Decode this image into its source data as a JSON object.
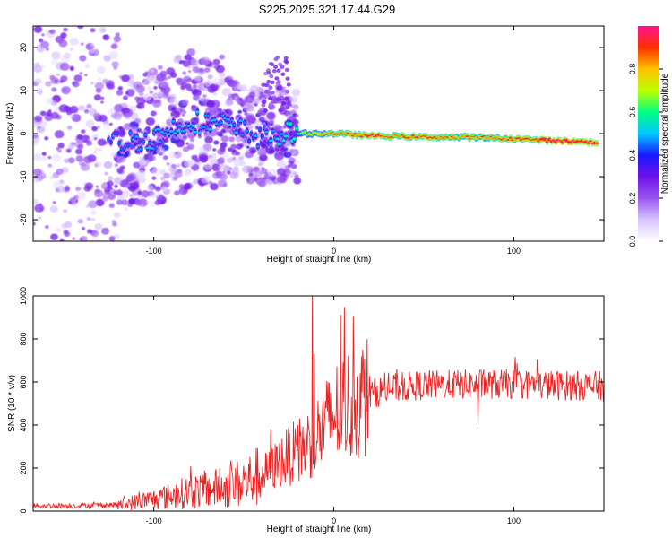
{
  "figure": {
    "title": "S225.2025.321.17.44.G29"
  },
  "chart_data": [
    {
      "type": "heatmap",
      "title": "S225.2025.321.17.44.G29",
      "xlabel": "Height of straight line (km)",
      "ylabel": "Frequency (Hz)",
      "xlim": [
        -167,
        150
      ],
      "ylim": [
        -25,
        25
      ],
      "xticks": [
        -100,
        0,
        100
      ],
      "yticks": [
        20,
        10,
        0,
        -10,
        -20
      ],
      "grid": false,
      "colorbar": {
        "label": "Normalized spectral amplitude",
        "range": [
          0,
          1
        ],
        "ticks": [
          0.0,
          0.2,
          0.4,
          0.6,
          0.8
        ],
        "colors": [
          "#ffffff",
          "#d8c4ff",
          "#9a55f0",
          "#6d12e8",
          "#1a1aff",
          "#00c8ff",
          "#00ff80",
          "#bfff00",
          "#ffc000",
          "#ff3000",
          "#ff1090"
        ]
      },
      "ridge": {
        "description": "dominant frequency track",
        "x": [
          -120,
          -100,
          -80,
          -60,
          -40,
          -25,
          -15,
          0,
          20,
          50,
          80,
          100,
          120,
          145
        ],
        "frequency": [
          -2,
          -1,
          3,
          2,
          -1,
          0,
          0,
          0,
          -0.5,
          -0.8,
          -0.9,
          -1.2,
          -1.6,
          -2.0
        ],
        "peak_amplitude": [
          0.35,
          0.38,
          0.42,
          0.38,
          0.35,
          0.45,
          0.62,
          0.78,
          0.85,
          0.8,
          0.75,
          0.82,
          0.92,
          0.88
        ]
      },
      "scatter_region": {
        "description": "incoherent noise blobs",
        "x": [
          -167,
          -20
        ],
        "frequency": [
          -25,
          25
        ]
      }
    },
    {
      "type": "line",
      "title": "",
      "xlabel": "Height of straight line (km)",
      "ylabel": "SNR (10 * v/v)",
      "xlim": [
        -167,
        150
      ],
      "ylim": [
        0,
        1000
      ],
      "xticks": [
        -100,
        0,
        100
      ],
      "yticks": [
        0,
        200,
        400,
        600,
        800,
        1000
      ],
      "grid": false,
      "series": [
        {
          "name": "SNR",
          "color": "#ee2222",
          "envelope_x": [
            -167,
            -140,
            -120,
            -100,
            -80,
            -60,
            -45,
            -35,
            -30,
            -20,
            -12,
            -5,
            0,
            10,
            20,
            30,
            50,
            80,
            100,
            120,
            150
          ],
          "envelope_mean": [
            25,
            25,
            30,
            55,
            90,
            110,
            150,
            190,
            230,
            280,
            330,
            390,
            450,
            500,
            540,
            570,
            585,
            590,
            590,
            585,
            580
          ],
          "spikes": [
            {
              "x": -12,
              "value": 1000
            },
            {
              "x": -35,
              "value": 380
            },
            {
              "x": -20,
              "value": 400
            },
            {
              "x": 80,
              "value": 400
            }
          ]
        }
      ]
    }
  ]
}
